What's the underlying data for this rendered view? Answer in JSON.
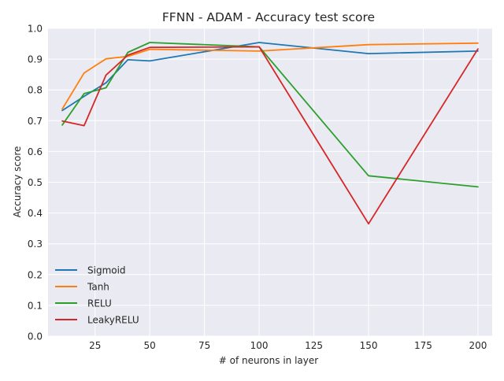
{
  "chart_data": {
    "type": "line",
    "title": "FFNN - ADAM - Accuracy test score",
    "xlabel": "# of neurons in layer",
    "ylabel": "Accuracy score",
    "xlim": [
      3.5,
      206.5
    ],
    "ylim": [
      0.0,
      1.0
    ],
    "xticks": [
      25,
      50,
      75,
      100,
      125,
      150,
      175,
      200
    ],
    "xtick_labels": [
      "25",
      "50",
      "75",
      "100",
      "125",
      "150",
      "175",
      "200"
    ],
    "yticks": [
      0.0,
      0.1,
      0.2,
      0.3,
      0.4,
      0.5,
      0.6,
      0.7,
      0.8,
      0.9,
      1.0
    ],
    "ytick_labels": [
      "0.0",
      "0.1",
      "0.2",
      "0.3",
      "0.4",
      "0.5",
      "0.6",
      "0.7",
      "0.8",
      "0.9",
      "1.0"
    ],
    "grid": true,
    "legend_position": "lower-left",
    "x": [
      10,
      20,
      30,
      40,
      50,
      100,
      150,
      200
    ],
    "series": [
      {
        "name": "Sigmoid",
        "color": "#1f77b4",
        "values": [
          0.733,
          0.779,
          0.823,
          0.898,
          0.894,
          0.954,
          0.918,
          0.926
        ]
      },
      {
        "name": "Tanh",
        "color": "#ff7f0e",
        "values": [
          0.738,
          0.855,
          0.901,
          0.909,
          0.932,
          0.926,
          0.947,
          0.952
        ]
      },
      {
        "name": "RELU",
        "color": "#2ca02c",
        "values": [
          0.686,
          0.788,
          0.807,
          0.922,
          0.954,
          0.94,
          0.521,
          0.485
        ]
      },
      {
        "name": "LeakyRELU",
        "color": "#d62728",
        "values": [
          0.699,
          0.684,
          0.848,
          0.913,
          0.938,
          0.94,
          0.365,
          0.933
        ]
      }
    ]
  }
}
